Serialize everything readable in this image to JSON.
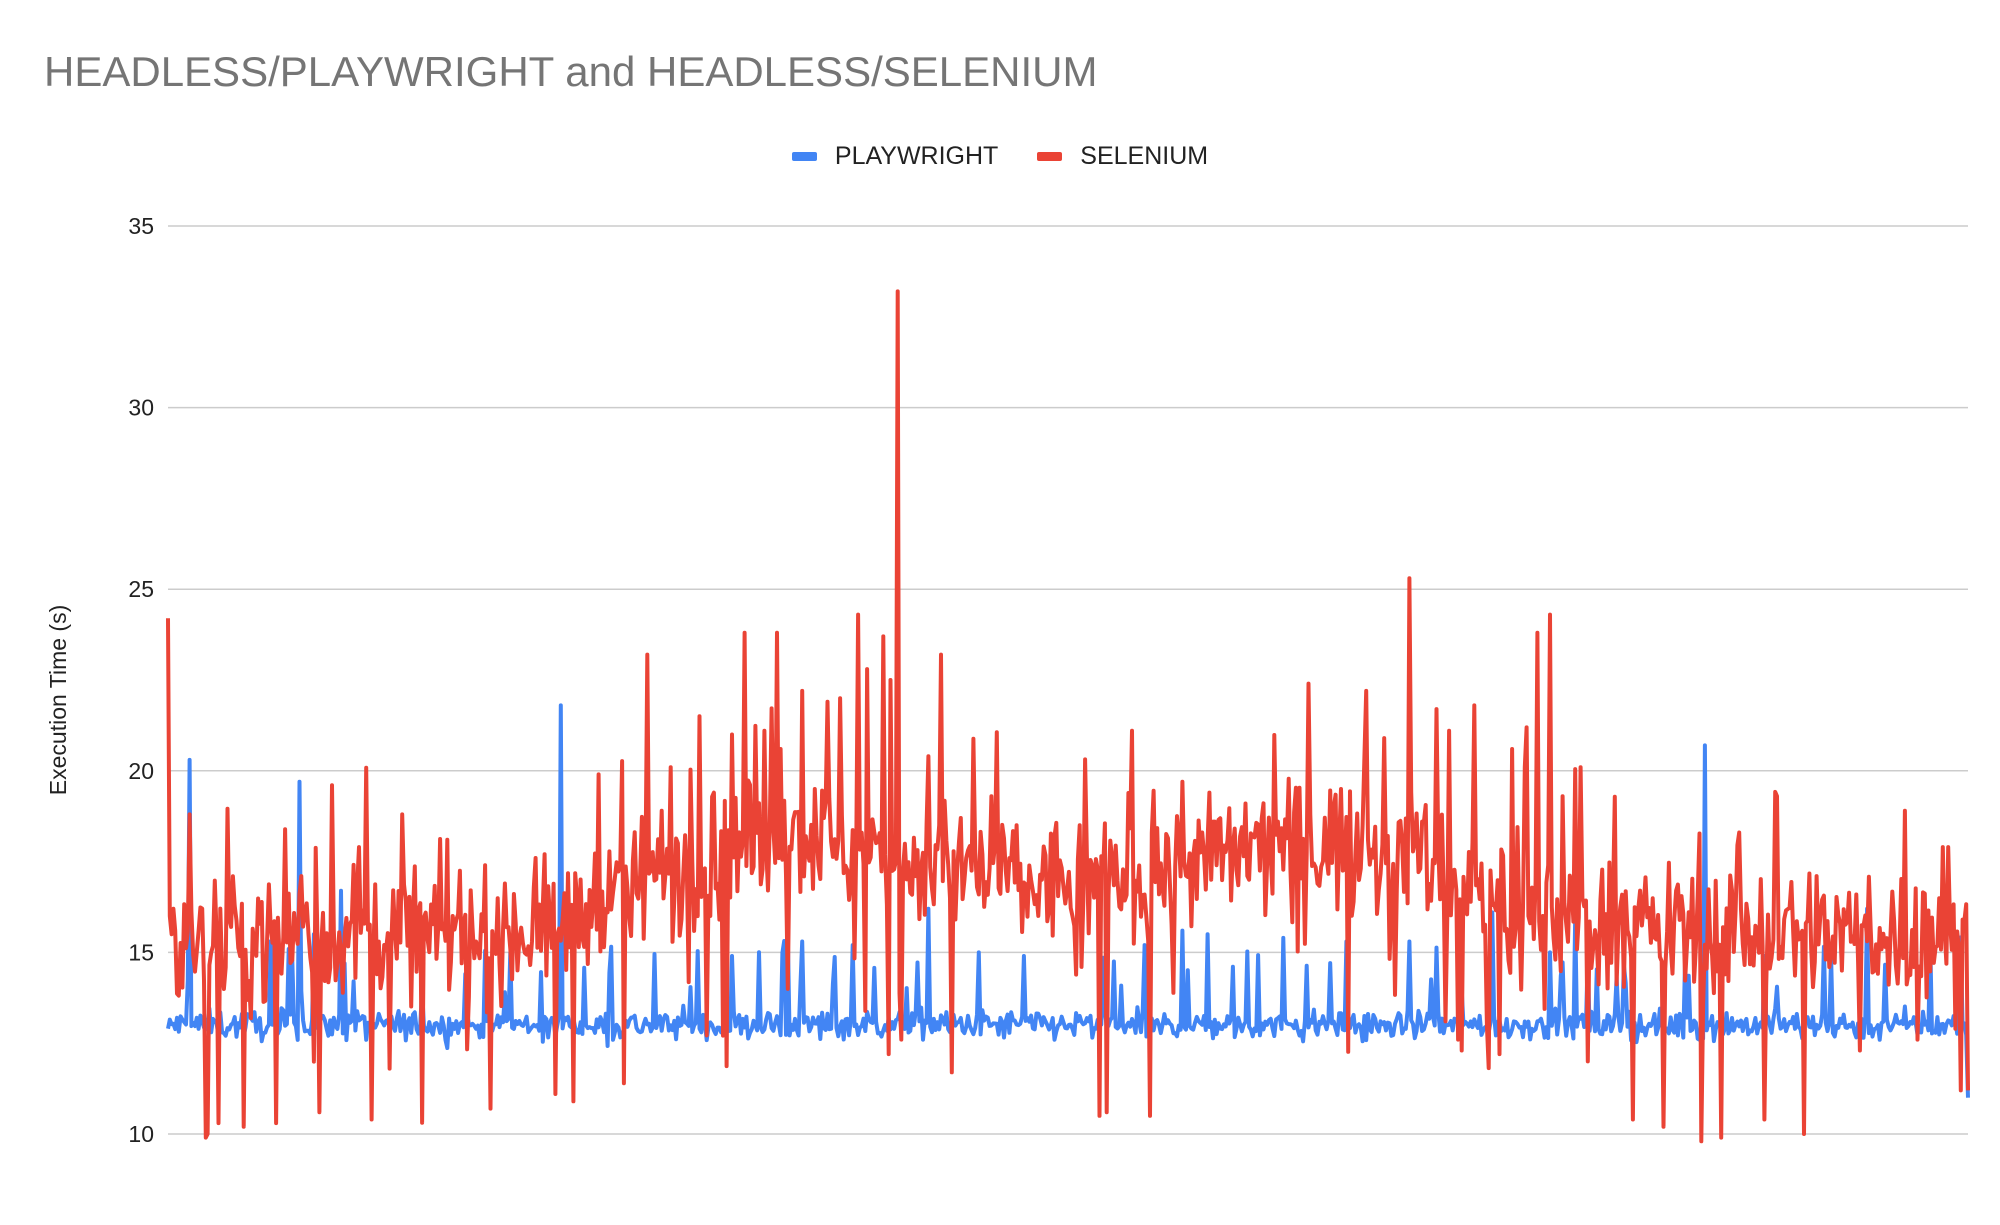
{
  "chart_data": {
    "type": "line",
    "title": "HEADLESS/PLAYWRIGHT and HEADLESS/SELENIUM",
    "xlabel": "",
    "ylabel": "Execution Time (s)",
    "ylim": [
      10,
      35
    ],
    "yticks": [
      10,
      15,
      20,
      25,
      30,
      35
    ],
    "grid": true,
    "legend_position": "top",
    "n_points": 1000,
    "series": [
      {
        "name": "PLAYWRIGHT",
        "color": "#4285f4",
        "baseline": 13.0,
        "noise": 0.45,
        "spikes": [
          [
            0,
            12.9
          ],
          [
            17,
            20.3
          ],
          [
            104,
            19.7
          ],
          [
            115,
            15.5
          ],
          [
            137,
            16.7
          ],
          [
            270,
            15.0
          ],
          [
            310,
            21.8
          ],
          [
            445,
            14.9
          ],
          [
            500,
            15.3
          ],
          [
            540,
            15.2
          ],
          [
            600,
            16.2
          ],
          [
            640,
            15.0
          ],
          [
            675,
            14.9
          ],
          [
            770,
            15.2
          ],
          [
            800,
            15.6
          ],
          [
            820,
            15.5
          ],
          [
            880,
            15.4
          ],
          [
            930,
            15.3
          ],
          [
            980,
            15.3
          ],
          [
            1045,
            16.1
          ],
          [
            1090,
            15.0
          ],
          [
            1110,
            16.0
          ],
          [
            1212,
            20.7
          ],
          [
            1260,
            14.9
          ],
          [
            1340,
            16.2
          ],
          [
            1390,
            15.4
          ],
          [
            1410,
            13.1
          ],
          [
            1420,
            11.0
          ]
        ]
      },
      {
        "name": "SELENIUM",
        "color": "#ea4335",
        "anchors": [
          [
            0,
            15.2
          ],
          [
            150,
            15.6
          ],
          [
            290,
            15.6
          ],
          [
            400,
            17.2
          ],
          [
            490,
            18.3
          ],
          [
            560,
            17.7
          ],
          [
            620,
            17.2
          ],
          [
            680,
            16.8
          ],
          [
            780,
            17.2
          ],
          [
            900,
            18.0
          ],
          [
            990,
            17.7
          ],
          [
            1060,
            16.0
          ],
          [
            1200,
            15.6
          ],
          [
            1420,
            15.5
          ]
        ],
        "noise": 1.6,
        "spikes": [
          [
            0,
            24.2
          ],
          [
            1,
            17.1
          ],
          [
            2,
            16.0
          ],
          [
            3,
            15.5
          ],
          [
            4,
            16.2
          ],
          [
            5,
            15.4
          ],
          [
            6,
            15.6
          ],
          [
            17,
            18.8
          ],
          [
            30,
            9.9
          ],
          [
            31,
            10.0
          ],
          [
            40,
            10.3
          ],
          [
            60,
            10.2
          ],
          [
            85,
            10.3
          ],
          [
            105,
            17.1
          ],
          [
            120,
            10.6
          ],
          [
            130,
            19.6
          ],
          [
            150,
            17.9
          ],
          [
            160,
            10.4
          ],
          [
            175,
            11.8
          ],
          [
            185,
            18.8
          ],
          [
            220,
            18.1
          ],
          [
            250,
            17.4
          ],
          [
            255,
            10.7
          ],
          [
            290,
            17.6
          ],
          [
            305,
            11.1
          ],
          [
            320,
            10.9
          ],
          [
            340,
            19.9
          ],
          [
            360,
            11.4
          ],
          [
            378,
            23.2
          ],
          [
            390,
            18.9
          ],
          [
            397,
            20.1
          ],
          [
            420,
            21.5
          ],
          [
            430,
            19.4
          ],
          [
            445,
            21.0
          ],
          [
            455,
            23.8
          ],
          [
            470,
            21.1
          ],
          [
            480,
            23.8
          ],
          [
            500,
            22.2
          ],
          [
            510,
            19.5
          ],
          [
            520,
            21.9
          ],
          [
            530,
            22.0
          ],
          [
            545,
            24.3
          ],
          [
            552,
            22.8
          ],
          [
            565,
            23.7
          ],
          [
            568,
            12.2
          ],
          [
            570,
            22.5
          ],
          [
            575,
            33.2
          ],
          [
            578,
            12.6
          ],
          [
            590,
            17.1
          ],
          [
            600,
            20.4
          ],
          [
            610,
            23.2
          ],
          [
            618,
            11.7
          ],
          [
            625,
            18.7
          ],
          [
            650,
            19.3
          ],
          [
            670,
            18.5
          ],
          [
            690,
            17.0
          ],
          [
            700,
            18.2
          ],
          [
            720,
            14.6
          ],
          [
            735,
            10.5
          ],
          [
            740,
            10.6
          ],
          [
            760,
            21.1
          ],
          [
            775,
            10.5
          ],
          [
            800,
            19.7
          ],
          [
            825,
            18.6
          ],
          [
            850,
            19.1
          ],
          [
            875,
            18.6
          ],
          [
            900,
            22.4
          ],
          [
            925,
            19.5
          ],
          [
            945,
            22.2
          ],
          [
            960,
            20.9
          ],
          [
            980,
            25.3
          ],
          [
            990,
            18.6
          ],
          [
            1000,
            21.7
          ],
          [
            1008,
            13.1
          ],
          [
            1010,
            21.1
          ],
          [
            1018,
            12.6
          ],
          [
            1020,
            12.3
          ],
          [
            1030,
            21.8
          ],
          [
            1040,
            13.0
          ],
          [
            1050,
            12.2
          ],
          [
            1060,
            20.6
          ],
          [
            1070,
            20.1
          ],
          [
            1080,
            23.8
          ],
          [
            1090,
            24.3
          ],
          [
            1100,
            19.3
          ],
          [
            1115,
            20.1
          ],
          [
            1120,
            12.0
          ],
          [
            1155,
            10.4
          ],
          [
            1180,
            10.2
          ],
          [
            1190,
            16.7
          ],
          [
            1210,
            9.8
          ],
          [
            1225,
            9.9
          ],
          [
            1240,
            18.3
          ],
          [
            1260,
            10.4
          ],
          [
            1270,
            19.3
          ],
          [
            1290,
            10.0
          ],
          [
            1300,
            17.1
          ],
          [
            1320,
            14.5
          ],
          [
            1335,
            12.3
          ],
          [
            1370,
            18.9
          ],
          [
            1380,
            12.6
          ],
          [
            1400,
            17.9
          ],
          [
            1405,
            17.9
          ],
          [
            1410,
            12.9
          ],
          [
            1415,
            11.2
          ],
          [
            1420,
            11.2
          ]
        ]
      }
    ]
  }
}
